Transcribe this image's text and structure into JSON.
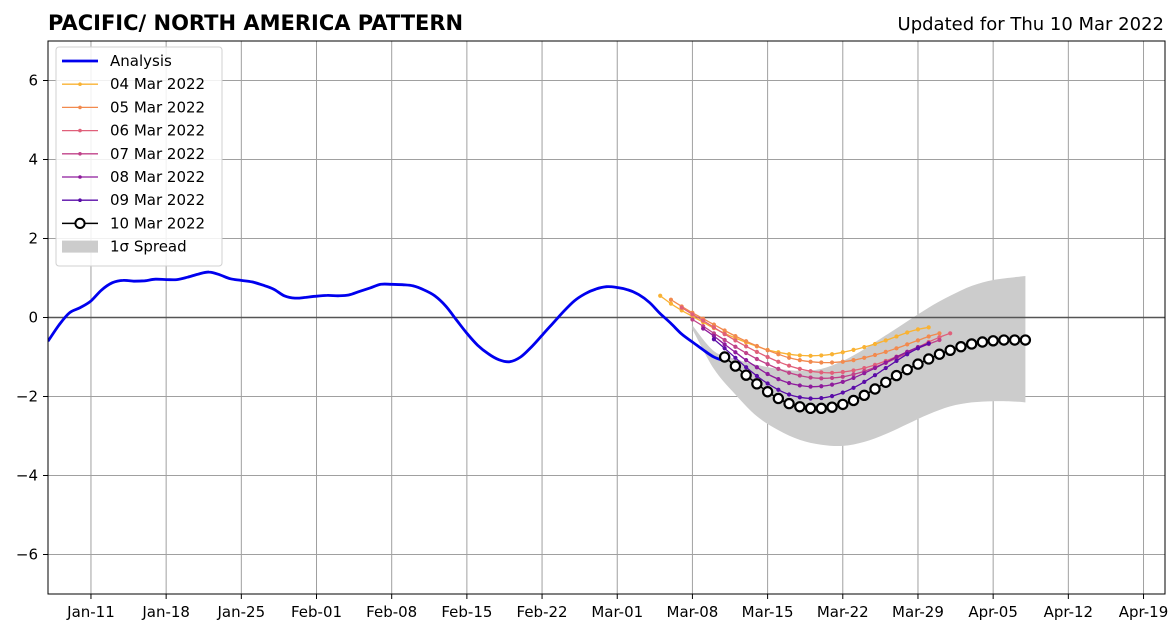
{
  "header": {
    "title": "PACIFIC/ NORTH AMERICA PATTERN",
    "updated": "Updated for Thu 10 Mar 2022"
  },
  "chart_data": {
    "type": "line",
    "title": "PACIFIC/ NORTH AMERICA PATTERN",
    "xlabel": "",
    "ylabel": "",
    "x_is_day_of_year_2022": true,
    "xlim": [
      7,
      111
    ],
    "ylim": [
      -7,
      7
    ],
    "grid": true,
    "legend_position": "top-left",
    "x_ticks": [
      {
        "day": 11,
        "label": "Jan-11"
      },
      {
        "day": 18,
        "label": "Jan-18"
      },
      {
        "day": 25,
        "label": "Jan-25"
      },
      {
        "day": 32,
        "label": "Feb-01"
      },
      {
        "day": 39,
        "label": "Feb-08"
      },
      {
        "day": 46,
        "label": "Feb-15"
      },
      {
        "day": 53,
        "label": "Feb-22"
      },
      {
        "day": 60,
        "label": "Mar-01"
      },
      {
        "day": 67,
        "label": "Mar-08"
      },
      {
        "day": 74,
        "label": "Mar-15"
      },
      {
        "day": 81,
        "label": "Mar-22"
      },
      {
        "day": 88,
        "label": "Mar-29"
      },
      {
        "day": 95,
        "label": "Apr-05"
      },
      {
        "day": 102,
        "label": "Apr-12"
      },
      {
        "day": 109,
        "label": "Apr-19"
      }
    ],
    "y_ticks": [
      {
        "value": 6,
        "label": "6"
      },
      {
        "value": 4,
        "label": "4"
      },
      {
        "value": 2,
        "label": "2"
      },
      {
        "value": 0,
        "label": "0"
      },
      {
        "value": -2,
        "label": "−2"
      },
      {
        "value": -4,
        "label": "−4"
      },
      {
        "value": -6,
        "label": "−6"
      }
    ],
    "spread": {
      "name": "1σ Spread",
      "color": "#cccccc",
      "x": [
        67,
        69,
        71,
        73,
        75,
        77,
        79,
        81,
        83,
        85,
        87,
        89,
        91,
        93,
        95,
        97,
        98
      ],
      "upper": [
        -0.2,
        -0.85,
        -1.05,
        -1.2,
        -1.3,
        -1.35,
        -1.3,
        -1.1,
        -0.8,
        -0.45,
        -0.1,
        0.25,
        0.55,
        0.8,
        0.95,
        1.02,
        1.05
      ],
      "lower": [
        -0.3,
        -1.3,
        -1.95,
        -2.5,
        -2.85,
        -3.1,
        -3.22,
        -3.25,
        -3.15,
        -2.95,
        -2.7,
        -2.45,
        -2.25,
        -2.15,
        -2.12,
        -2.13,
        -2.15
      ]
    },
    "analysis": {
      "name": "Analysis",
      "color": "#0000ee",
      "x": [
        7,
        8,
        9,
        10,
        11,
        12,
        13,
        14,
        15,
        16,
        17,
        18,
        19,
        20,
        21,
        22,
        23,
        24,
        25,
        26,
        27,
        28,
        29,
        30,
        31,
        32,
        33,
        34,
        35,
        36,
        37,
        38,
        39,
        40,
        41,
        42,
        43,
        44,
        45,
        46,
        47,
        48,
        49,
        50,
        51,
        52,
        53,
        54,
        55,
        56,
        57,
        58,
        59,
        60,
        61,
        62,
        63,
        64,
        65,
        66,
        67,
        68,
        69,
        70
      ],
      "y": [
        -0.6,
        -0.2,
        0.12,
        0.25,
        0.42,
        0.7,
        0.88,
        0.94,
        0.92,
        0.93,
        0.97,
        0.96,
        0.96,
        1.02,
        1.1,
        1.15,
        1.08,
        0.98,
        0.94,
        0.9,
        0.82,
        0.72,
        0.55,
        0.49,
        0.51,
        0.54,
        0.56,
        0.55,
        0.57,
        0.66,
        0.75,
        0.84,
        0.84,
        0.83,
        0.8,
        0.7,
        0.55,
        0.3,
        -0.05,
        -0.4,
        -0.7,
        -0.92,
        -1.07,
        -1.12,
        -1.0,
        -0.75,
        -0.45,
        -0.15,
        0.15,
        0.42,
        0.6,
        0.72,
        0.78,
        0.76,
        0.7,
        0.58,
        0.38,
        0.1,
        -0.15,
        -0.42,
        -0.62,
        -0.82,
        -1.0,
        -1.1
      ]
    },
    "forecasts": [
      {
        "name": "04 Mar 2022",
        "color": "#f9b233",
        "start": 64,
        "y": [
          0.55,
          0.35,
          0.18,
          0.03,
          -0.12,
          -0.27,
          -0.4,
          -0.52,
          -0.63,
          -0.73,
          -0.82,
          -0.88,
          -0.93,
          -0.96,
          -0.97,
          -0.96,
          -0.93,
          -0.88,
          -0.82,
          -0.75,
          -0.67,
          -0.58,
          -0.48,
          -0.38,
          -0.3,
          -0.25
        ]
      },
      {
        "name": "05 Mar 2022",
        "color": "#f28a4e",
        "start": 65,
        "y": [
          0.45,
          0.28,
          0.12,
          -0.03,
          -0.18,
          -0.33,
          -0.47,
          -0.6,
          -0.72,
          -0.83,
          -0.93,
          -1.02,
          -1.08,
          -1.12,
          -1.14,
          -1.14,
          -1.12,
          -1.08,
          -1.02,
          -0.95,
          -0.87,
          -0.78,
          -0.68,
          -0.58,
          -0.48,
          -0.4
        ]
      },
      {
        "name": "06 Mar 2022",
        "color": "#e0607a",
        "start": 66,
        "y": [
          0.25,
          0.08,
          -0.08,
          -0.25,
          -0.42,
          -0.58,
          -0.73,
          -0.87,
          -1.0,
          -1.12,
          -1.22,
          -1.3,
          -1.36,
          -1.39,
          -1.4,
          -1.38,
          -1.34,
          -1.28,
          -1.2,
          -1.1,
          -0.99,
          -0.87,
          -0.75,
          -0.62,
          -0.5,
          -0.4
        ]
      },
      {
        "name": "07 Mar 2022",
        "color": "#c0428a",
        "start": 67,
        "y": [
          -0.05,
          -0.22,
          -0.4,
          -0.57,
          -0.74,
          -0.9,
          -1.05,
          -1.18,
          -1.3,
          -1.4,
          -1.47,
          -1.52,
          -1.54,
          -1.53,
          -1.5,
          -1.44,
          -1.36,
          -1.26,
          -1.15,
          -1.03,
          -0.9,
          -0.78,
          -0.67,
          -0.57
        ]
      },
      {
        "name": "08 Mar 2022",
        "color": "#8e1b9c",
        "start": 68,
        "y": [
          -0.28,
          -0.47,
          -0.68,
          -0.88,
          -1.08,
          -1.26,
          -1.43,
          -1.56,
          -1.66,
          -1.72,
          -1.75,
          -1.74,
          -1.7,
          -1.63,
          -1.53,
          -1.41,
          -1.28,
          -1.14,
          -1.0,
          -0.87,
          -0.75,
          -0.65
        ]
      },
      {
        "name": "09 Mar 2022",
        "color": "#5a0ca8",
        "start": 69,
        "y": [
          -0.55,
          -0.78,
          -1.02,
          -1.26,
          -1.48,
          -1.67,
          -1.83,
          -1.95,
          -2.02,
          -2.05,
          -2.04,
          -1.99,
          -1.9,
          -1.78,
          -1.63,
          -1.46,
          -1.28,
          -1.1,
          -0.93,
          -0.78,
          -0.66
        ]
      },
      {
        "name": "10 Mar 2022",
        "color": "#000000",
        "start": 70,
        "y": [
          -1.0,
          -1.23,
          -1.46,
          -1.68,
          -1.88,
          -2.05,
          -2.18,
          -2.26,
          -2.3,
          -2.3,
          -2.27,
          -2.2,
          -2.1,
          -1.97,
          -1.81,
          -1.64,
          -1.47,
          -1.32,
          -1.18,
          -1.05,
          -0.93,
          -0.83,
          -0.74,
          -0.67,
          -0.62,
          -0.59,
          -0.57,
          -0.57,
          -0.57
        ]
      }
    ],
    "legend": [
      {
        "label": "Analysis",
        "kind": "analysis",
        "color": "#0000ee"
      },
      {
        "label": "04 Mar 2022",
        "kind": "small",
        "color": "#f9b233"
      },
      {
        "label": "05 Mar 2022",
        "kind": "small",
        "color": "#f28a4e"
      },
      {
        "label": "06 Mar 2022",
        "kind": "small",
        "color": "#e0607a"
      },
      {
        "label": "07 Mar 2022",
        "kind": "small",
        "color": "#c0428a"
      },
      {
        "label": "08 Mar 2022",
        "kind": "small",
        "color": "#8e1b9c"
      },
      {
        "label": "09 Mar 2022",
        "kind": "small",
        "color": "#5a0ca8"
      },
      {
        "label": "10 Mar 2022",
        "kind": "big",
        "color": "#000000"
      },
      {
        "label": "1σ Spread",
        "kind": "patch",
        "color": "#cccccc"
      }
    ]
  }
}
